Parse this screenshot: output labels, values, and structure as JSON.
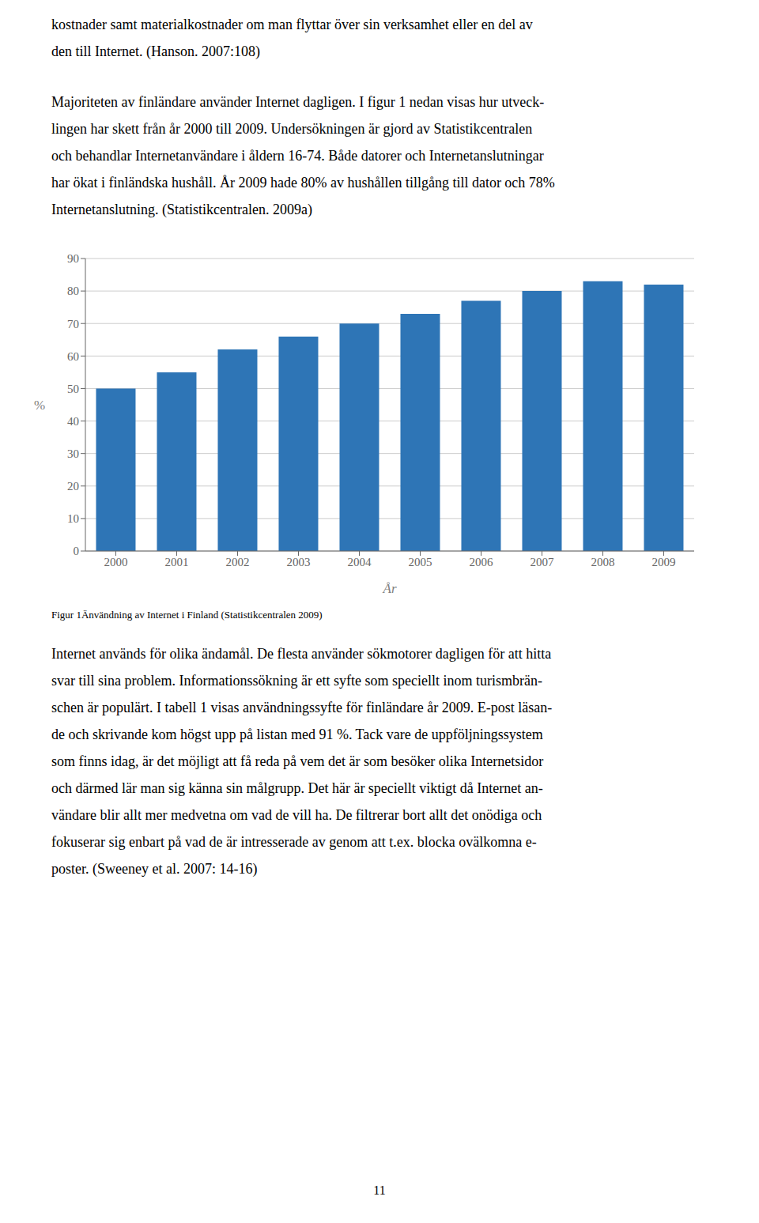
{
  "chart_data": {
    "type": "bar",
    "categories": [
      "2000",
      "2001",
      "2002",
      "2003",
      "2004",
      "2005",
      "2006",
      "2007",
      "2008",
      "2009"
    ],
    "values": [
      50,
      55,
      62,
      66,
      70,
      73,
      77,
      80,
      83,
      82
    ],
    "color": "#2E75B6",
    "xlabel": "År",
    "ylabel": "%",
    "ylim": [
      0,
      90
    ],
    "yticks": [
      0,
      10,
      20,
      30,
      40,
      50,
      60,
      70,
      80,
      90
    ],
    "grid": true,
    "text_above": [
      [
        "kostnader samt materialkostnader om man flyttar över sin verksamhet eller en del av",
        "den till Internet. (Hanson. 2007:108)"
      ],
      [
        "Majoriteten av finländare använder Internet dagligen. I figur 1 nedan visas hur utveck-",
        "lingen har skett från år 2000 till 2009. Undersökningen är gjord av Statistikcentralen",
        "och behandlar Internetanvändare i åldern 16-74. Både datorer och Internetanslutningar",
        "har ökat i finländska hushåll. År 2009 hade 80% av hushållen tillgång till dator och 78%",
        "Internetanslutning. (Statistikcentralen. 2009a)"
      ]
    ],
    "caption": "Figur 1Änvändning av Internet i Finland (Statistikcentralen 2009)",
    "text_below": [
      "Internet används för olika ändamål.  De flesta använder sökmotorer dagligen för att hitta",
      "svar till sina problem. Informationssökning är ett syfte som speciellt inom turismbrän-",
      "schen är populärt. I tabell 1 visas användningssyfte för finländare år 2009. E-post läsan-",
      "de och skrivande kom högst upp på listan med 91 %. Tack vare de uppföljningssystem",
      "som finns idag, är det möjligt att få reda på vem det är som besöker olika Internetsidor",
      "och därmed lär man sig känna sin målgrupp. Det här är speciellt viktigt då Internet an-",
      "vändare blir allt mer medvetna om vad de vill ha. De filtrerar bort allt det onödiga och",
      "fokuserar sig enbart på vad de är intresserade av genom att t.ex. blocka ovälkomna e-",
      "poster. (Sweeney et al. 2007: 14-16)"
    ],
    "page_number": "11"
  }
}
